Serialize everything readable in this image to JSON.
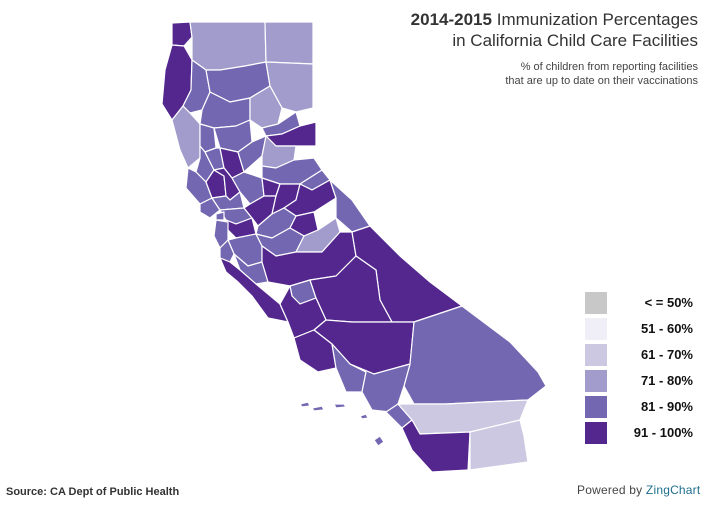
{
  "title": {
    "year": "2014-2015",
    "line1_rest": "Immunization Percentages",
    "line2": "in California Child Care Facilities"
  },
  "subtitle": {
    "line1": "% of children from reporting facilities",
    "line2": "that are up to date on their vaccinations"
  },
  "legend": [
    {
      "label": "< = 50%",
      "color": "#c8c8c8"
    },
    {
      "label": "51 - 60%",
      "color": "#f0eef6"
    },
    {
      "label": "61 - 70%",
      "color": "#cdc8e2"
    },
    {
      "label": "71 - 80%",
      "color": "#a19ccc"
    },
    {
      "label": "81 - 90%",
      "color": "#7467b2"
    },
    {
      "label": "91 - 100%",
      "color": "#54278f"
    }
  ],
  "source": "Source: CA Dept of Public Health",
  "powered": {
    "prefix": "Powered by",
    "brand": "ZingChart"
  },
  "map_data": {
    "type": "choropleth",
    "region": "California counties",
    "counties": [
      {
        "id": "del-norte",
        "bin": 5
      },
      {
        "id": "siskiyou",
        "bin": 3
      },
      {
        "id": "modoc",
        "bin": 3
      },
      {
        "id": "humboldt",
        "bin": 5
      },
      {
        "id": "trinity",
        "bin": 4
      },
      {
        "id": "shasta",
        "bin": 4
      },
      {
        "id": "lassen",
        "bin": 3
      },
      {
        "id": "mendocino",
        "bin": 3
      },
      {
        "id": "tehama",
        "bin": 4
      },
      {
        "id": "plumas",
        "bin": 3
      },
      {
        "id": "glenn",
        "bin": 4
      },
      {
        "id": "butte",
        "bin": 4
      },
      {
        "id": "sierra",
        "bin": 4
      },
      {
        "id": "nevada",
        "bin": 5
      },
      {
        "id": "lake",
        "bin": 4
      },
      {
        "id": "colusa",
        "bin": 4
      },
      {
        "id": "sutter",
        "bin": 5
      },
      {
        "id": "yuba",
        "bin": 4
      },
      {
        "id": "placer",
        "bin": 3
      },
      {
        "id": "el-dorado",
        "bin": 4
      },
      {
        "id": "sonoma",
        "bin": 4
      },
      {
        "id": "napa",
        "bin": 5
      },
      {
        "id": "yolo",
        "bin": 5
      },
      {
        "id": "sacramento",
        "bin": 4
      },
      {
        "id": "amador",
        "bin": 5
      },
      {
        "id": "alpine",
        "bin": 4
      },
      {
        "id": "marin",
        "bin": 4
      },
      {
        "id": "solano",
        "bin": 4
      },
      {
        "id": "contra-costa",
        "bin": 4
      },
      {
        "id": "san-joaquin",
        "bin": 5
      },
      {
        "id": "calaveras",
        "bin": 5
      },
      {
        "id": "tuolumne",
        "bin": 5
      },
      {
        "id": "mono",
        "bin": 4
      },
      {
        "id": "san-francisco",
        "bin": 4
      },
      {
        "id": "alameda",
        "bin": 5
      },
      {
        "id": "san-mateo",
        "bin": 4
      },
      {
        "id": "santa-clara",
        "bin": 4
      },
      {
        "id": "stanislaus",
        "bin": 4
      },
      {
        "id": "mariposa",
        "bin": 5
      },
      {
        "id": "merced",
        "bin": 4
      },
      {
        "id": "madera",
        "bin": 3
      },
      {
        "id": "santa-cruz",
        "bin": 4
      },
      {
        "id": "san-benito",
        "bin": 4
      },
      {
        "id": "fresno",
        "bin": 5
      },
      {
        "id": "inyo",
        "bin": 5
      },
      {
        "id": "monterey",
        "bin": 5
      },
      {
        "id": "kings",
        "bin": 4
      },
      {
        "id": "tulare",
        "bin": 5
      },
      {
        "id": "san-luis-obispo",
        "bin": 5
      },
      {
        "id": "kern",
        "bin": 5
      },
      {
        "id": "san-bernardino",
        "bin": 4
      },
      {
        "id": "santa-barbara",
        "bin": 5
      },
      {
        "id": "ventura",
        "bin": 4
      },
      {
        "id": "los-angeles",
        "bin": 4
      },
      {
        "id": "orange",
        "bin": 4
      },
      {
        "id": "riverside",
        "bin": 2
      },
      {
        "id": "san-diego",
        "bin": 5
      },
      {
        "id": "imperial",
        "bin": 2
      },
      {
        "id": "channel-islands",
        "bin": 4
      }
    ]
  }
}
